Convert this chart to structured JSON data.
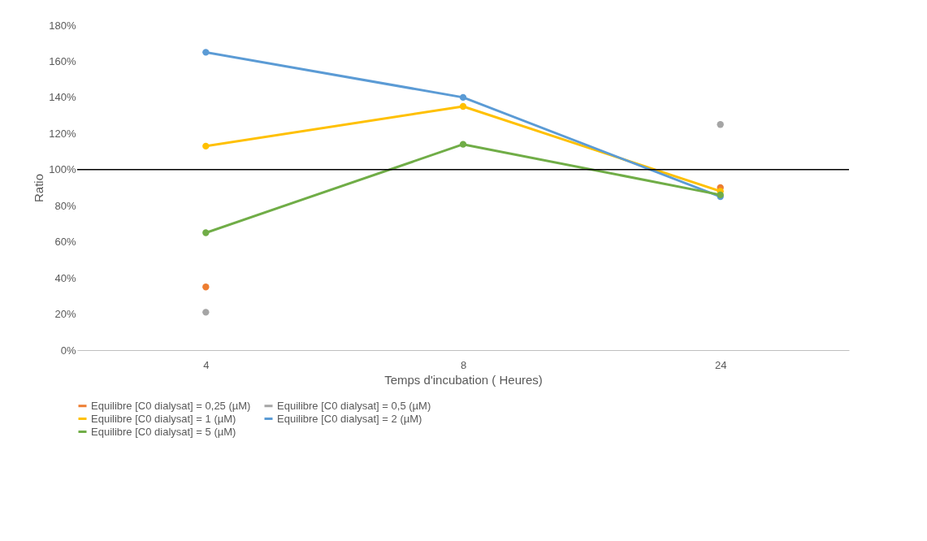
{
  "chart_data": {
    "type": "line",
    "xlabel": "Temps d'incubation ( Heures)",
    "ylabel": "Ratio",
    "categories": [
      "4",
      "8",
      "24"
    ],
    "series": [
      {
        "name": "Equilibre [C0 dialysat] = 0,25 (µM)",
        "type": "scatter",
        "color": "#ed7d31",
        "values": [
          35,
          null,
          90
        ]
      },
      {
        "name": "Equilibre [C0 dialysat] = 0,5 (µM)",
        "type": "scatter",
        "color": "#a5a5a5",
        "values": [
          21,
          null,
          125
        ]
      },
      {
        "name": "Equilibre [C0 dialysat] = 1 (µM)",
        "color": "#ffc000",
        "values": [
          113,
          135,
          88
        ]
      },
      {
        "name": "Equilibre [C0 dialysat] = 2 (µM)",
        "color": "#5b9bd5",
        "values": [
          165,
          140,
          85
        ]
      },
      {
        "name": "Equilibre [C0 dialysat] = 5 (µM)",
        "color": "#70ad47",
        "values": [
          65,
          114,
          86
        ]
      }
    ],
    "ylim": [
      0,
      180
    ],
    "yticks": [
      {
        "value": 0,
        "label": "0%"
      },
      {
        "value": 20,
        "label": "20%"
      },
      {
        "value": 40,
        "label": "40%"
      },
      {
        "value": 60,
        "label": "60%"
      },
      {
        "value": 80,
        "label": "80%"
      },
      {
        "value": 100,
        "label": "100%"
      },
      {
        "value": 120,
        "label": "120%"
      },
      {
        "value": 140,
        "label": "140%"
      },
      {
        "value": 160,
        "label": "160%"
      },
      {
        "value": 180,
        "label": "180%"
      }
    ],
    "ref_lines": [
      {
        "axis": "y",
        "value": 100,
        "label": null,
        "color": "#000000"
      }
    ],
    "grid": false,
    "legend": "bottom",
    "marker": "circle",
    "line_style": "solid"
  }
}
